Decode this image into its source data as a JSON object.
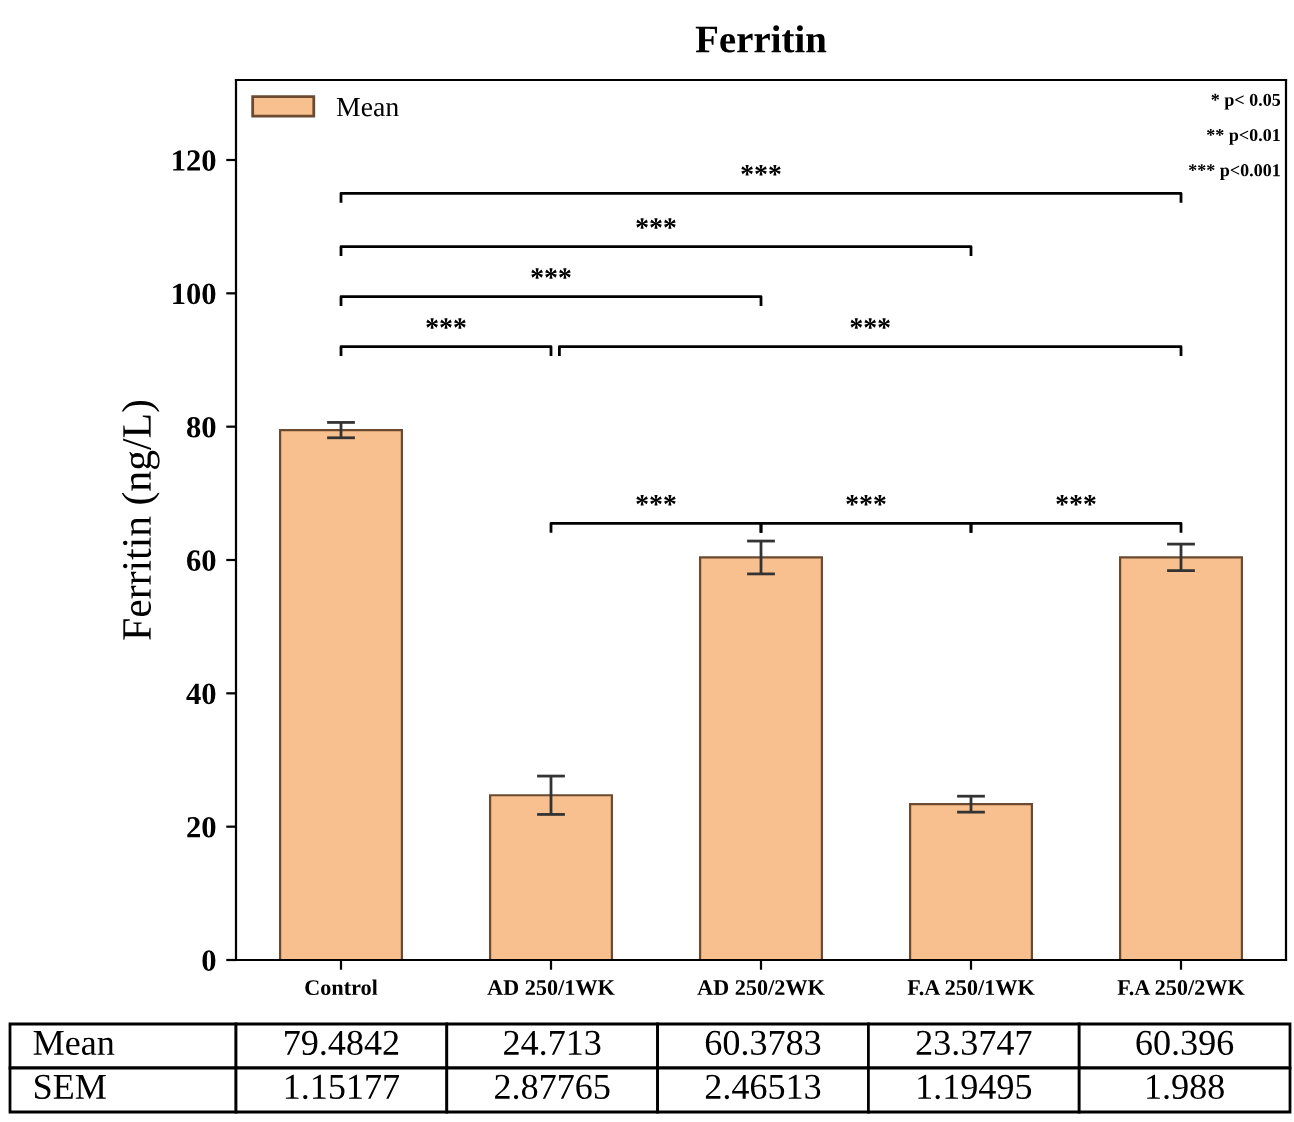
{
  "chart_data": {
    "type": "bar",
    "title": "Ferritin",
    "ylabel": "Ferritin (ng/L)",
    "categories": [
      "Control",
      "AD 250/1WK",
      "AD 250/2WK",
      "F.A 250/1WK",
      "F.A 250/2WK"
    ],
    "series": [
      {
        "name": "Mean",
        "color": "#f9c08f",
        "values": [
          79.4842,
          24.713,
          60.3783,
          23.3747,
          60.396
        ],
        "errors": [
          1.15177,
          2.87765,
          2.46513,
          1.19495,
          1.988
        ]
      }
    ],
    "ylim": [
      0,
      132
    ],
    "yticks": [
      0,
      20,
      40,
      60,
      80,
      100,
      120
    ],
    "grid": false,
    "legend": "top left",
    "data_labels": true,
    "annotations": [
      "***",
      "***",
      "***",
      "***",
      "***",
      "***",
      "***",
      "***",
      "* p< 0.05",
      "** p<0.01",
      "*** p<0.001",
      "SEM",
      "1.15177",
      "2.87765",
      "2.46513",
      "1.19495",
      "1.988"
    ]
  }
}
